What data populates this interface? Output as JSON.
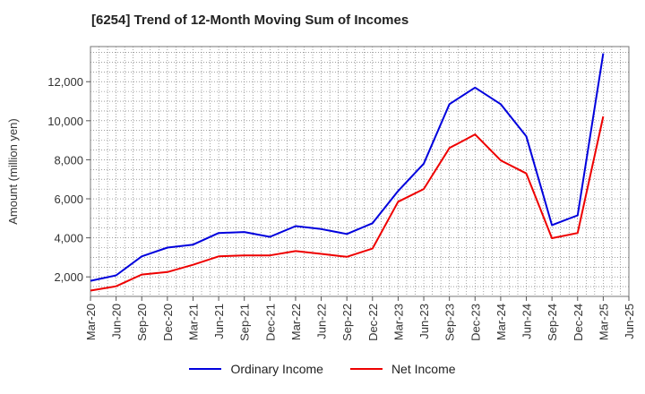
{
  "chart_data": {
    "type": "line",
    "title": "[6254]  Trend of 12-Month Moving Sum of Incomes",
    "ylabel": "Amount (million yen)",
    "xlabel": "",
    "categories": [
      "Mar-20",
      "Jun-20",
      "Sep-20",
      "Dec-20",
      "Mar-21",
      "Jun-21",
      "Sep-21",
      "Dec-21",
      "Mar-22",
      "Jun-22",
      "Sep-22",
      "Dec-22",
      "Mar-23",
      "Jun-23",
      "Sep-23",
      "Dec-23",
      "Mar-24",
      "Jun-24",
      "Sep-24",
      "Dec-24",
      "Mar-25",
      "Jun-25"
    ],
    "ylim": [
      1000,
      13800
    ],
    "yticks": [
      2000,
      4000,
      6000,
      8000,
      10000,
      12000
    ],
    "ytick_labels": [
      "2,000",
      "4,000",
      "6,000",
      "8,000",
      "10,000",
      "12,000"
    ],
    "grid": true,
    "legend_position": "bottom",
    "series": [
      {
        "name": "Ordinary Income",
        "color": "#0000dd",
        "values": [
          1800,
          2080,
          3050,
          3500,
          3650,
          4250,
          4300,
          4050,
          4600,
          4450,
          4200,
          4750,
          6400,
          7800,
          10850,
          11700,
          10850,
          9200,
          4650,
          5150,
          13450,
          null
        ]
      },
      {
        "name": "Net Income",
        "color": "#ee0000",
        "values": [
          1300,
          1520,
          2120,
          2250,
          2620,
          3050,
          3100,
          3100,
          3320,
          3180,
          3030,
          3450,
          5850,
          6500,
          8600,
          9300,
          7970,
          7300,
          3980,
          4250,
          10220,
          null
        ]
      }
    ]
  }
}
